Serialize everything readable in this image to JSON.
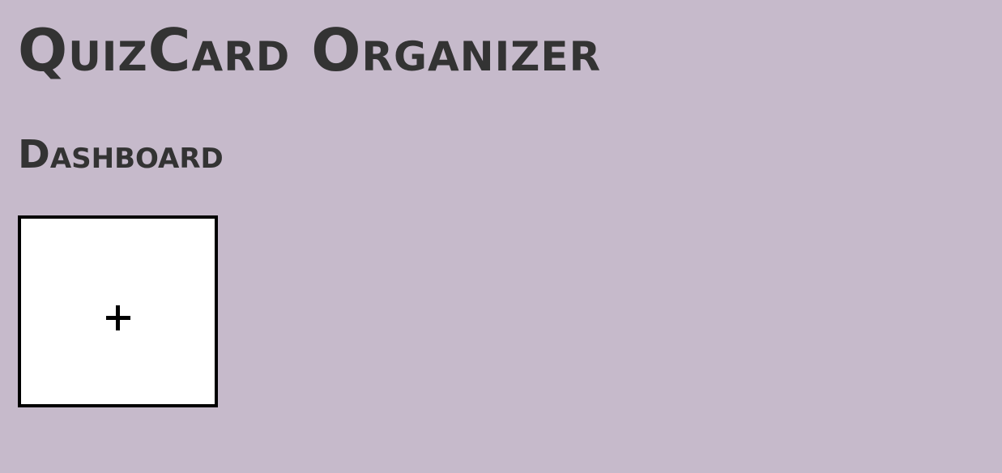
{
  "app": {
    "title": "QuizCard Organizer"
  },
  "dashboard": {
    "heading": "Dashboard",
    "add_card": {
      "icon": "plus-icon"
    }
  },
  "colors": {
    "background": "#c6bacb",
    "text": "#333333",
    "card_background": "#ffffff",
    "card_border": "#000000"
  }
}
